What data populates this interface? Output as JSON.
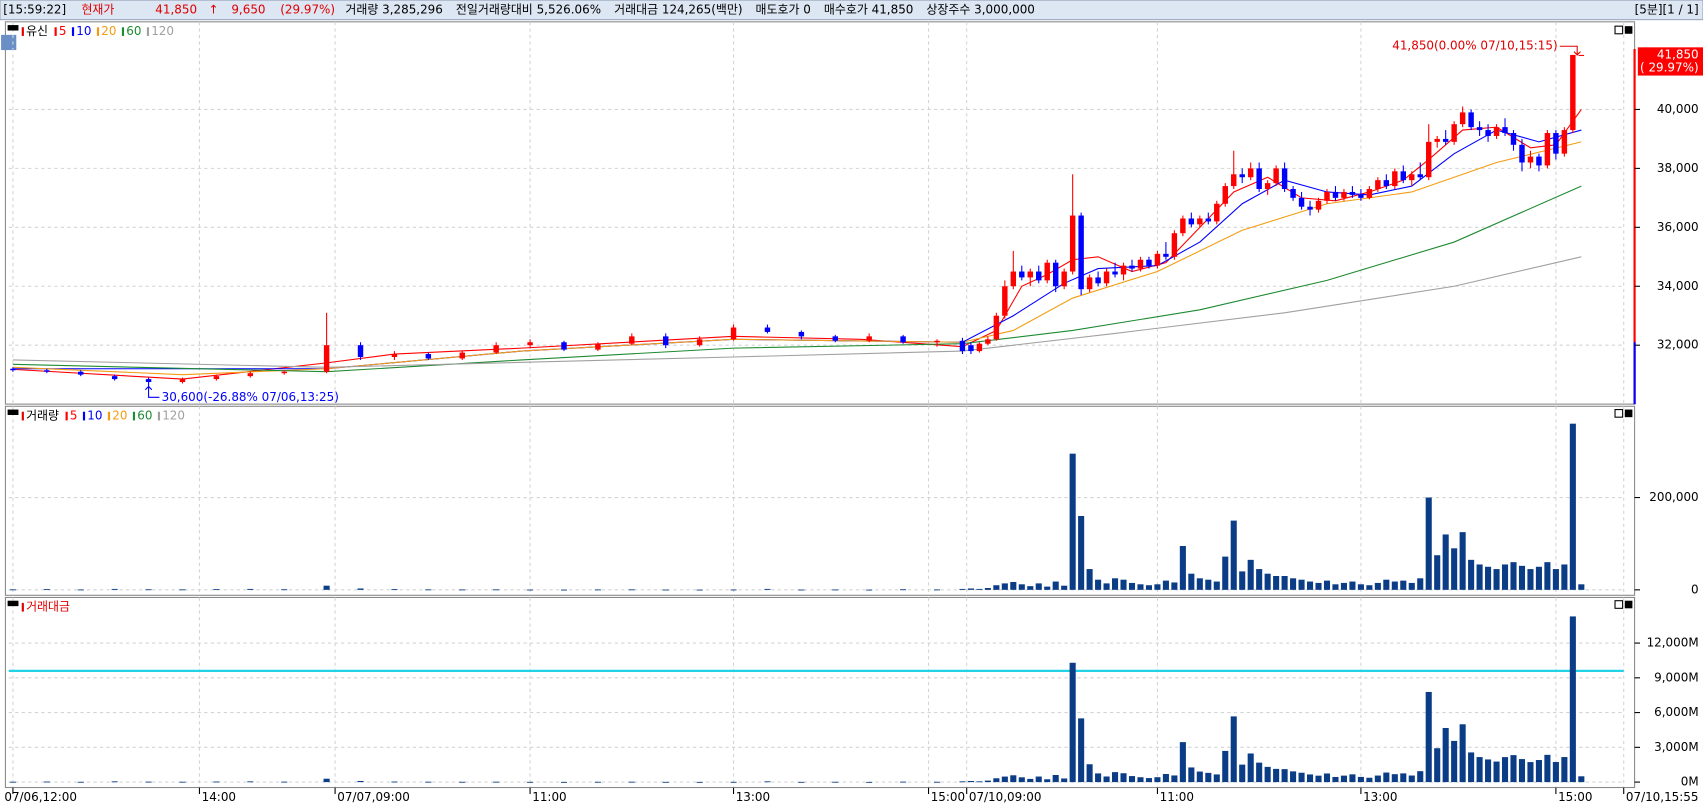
{
  "header": {
    "time": "[15:59:22]",
    "label": "현재가",
    "price": "41,850",
    "arrow": "↑",
    "change": "9,650",
    "change_pct": "(29.97%)",
    "items": [
      "거래량 3,285,296",
      "전일거래량대비 5,526.06%",
      "거래대금 124,265(백만)",
      "매도호가 0",
      "매수호가 41,850",
      "상장주수 3,000,000"
    ],
    "right": "[5분][1 / 1]"
  },
  "x_axis": {
    "xlim": [
      -0.5,
      190
    ],
    "xticks": [
      {
        "value": 0,
        "label": "07/06,12:00"
      },
      {
        "value": 22,
        "label": "14:00"
      },
      {
        "value": 38,
        "label": "07/07,09:00"
      },
      {
        "value": 61,
        "label": "11:00"
      },
      {
        "value": 85,
        "label": "13:00"
      },
      {
        "value": 108,
        "label": "15:00"
      },
      {
        "value": 112.5,
        "label": "07/10,09:00"
      },
      {
        "value": 135,
        "label": "11:00"
      },
      {
        "value": 159,
        "label": "13:00"
      },
      {
        "value": 182,
        "label": "15:00"
      },
      {
        "value": 190,
        "label": "07/10,15:55"
      }
    ]
  },
  "chart_data": [
    {
      "type": "candlestick",
      "name": "유신",
      "up_color": "#ff0000",
      "down_color": "#0000ff",
      "ylim": [
        30000,
        42900
      ],
      "yticks": [
        {
          "value": 32000,
          "label": "32,000"
        },
        {
          "value": 34000,
          "label": "34,000"
        },
        {
          "value": 36000,
          "label": "36,000"
        },
        {
          "value": 38000,
          "label": "38,000"
        },
        {
          "value": 40000,
          "label": "40,000"
        }
      ],
      "grid": true,
      "x": [
        0,
        4,
        8,
        12,
        16,
        20,
        24,
        28,
        32,
        37,
        41,
        45,
        49,
        53,
        57,
        61,
        65,
        69,
        73,
        77,
        81,
        85,
        89,
        93,
        97,
        101,
        105,
        109,
        112,
        113,
        114,
        115,
        116,
        117,
        118,
        119,
        120,
        121,
        122,
        123,
        124,
        125,
        126,
        127,
        128,
        129,
        130,
        131,
        132,
        133,
        134,
        135,
        136,
        137,
        138,
        139,
        140,
        141,
        142,
        143,
        144,
        145,
        146,
        147,
        148,
        149,
        150,
        151,
        152,
        153,
        154,
        155,
        156,
        157,
        158,
        159,
        160,
        161,
        162,
        163,
        164,
        165,
        166,
        167,
        168,
        169,
        170,
        171,
        172,
        173,
        174,
        175,
        176,
        177,
        178,
        179,
        180,
        181,
        182,
        183,
        184,
        185
      ],
      "open": [
        31200,
        31150,
        31100,
        30950,
        30850,
        30750,
        30850,
        30950,
        31050,
        31100,
        32000,
        31600,
        31700,
        31550,
        31750,
        32000,
        32100,
        31850,
        32050,
        32300,
        32000,
        32200,
        32600,
        32450,
        32300,
        32150,
        32300,
        32100,
        32150,
        32000,
        31800,
        32050,
        32200,
        33000,
        34000,
        34500,
        34300,
        34500,
        34200,
        34800,
        34000,
        34500,
        36400,
        33900,
        34300,
        34100,
        34500,
        34400,
        34700,
        34600,
        34900,
        34700,
        35100,
        35000,
        35800,
        36300,
        36100,
        36300,
        36200,
        36800,
        37400,
        37800,
        37700,
        38000,
        37300,
        37500,
        38000,
        37300,
        37000,
        36700,
        36600,
        36900,
        37200,
        37000,
        37200,
        37100,
        37000,
        37300,
        37600,
        37400,
        37900,
        37600,
        37800,
        37700,
        38900,
        39000,
        38900,
        39500,
        39900,
        39400,
        39300,
        39100,
        39400,
        39200,
        38800,
        38200,
        38400,
        38100,
        39200,
        38500,
        39300,
        41850
      ],
      "high": [
        31250,
        31200,
        31150,
        31000,
        30900,
        30900,
        31000,
        31100,
        31150,
        33100,
        32100,
        31800,
        31750,
        31800,
        32100,
        32200,
        32150,
        32100,
        32400,
        32400,
        32300,
        32700,
        32700,
        32500,
        32350,
        32400,
        32350,
        32200,
        32250,
        32100,
        32100,
        32300,
        33100,
        34200,
        35200,
        34700,
        34600,
        34700,
        34900,
        34900,
        34600,
        37800,
        36500,
        34400,
        34500,
        34600,
        34800,
        34800,
        34900,
        35000,
        35000,
        35200,
        35500,
        35900,
        36400,
        36500,
        36400,
        36500,
        36900,
        37500,
        38600,
        38000,
        38200,
        38200,
        37600,
        38100,
        38200,
        37400,
        37200,
        36900,
        37000,
        37300,
        37400,
        37300,
        37400,
        37300,
        37400,
        37700,
        37800,
        38000,
        38100,
        37900,
        38200,
        39500,
        39100,
        39300,
        39600,
        40100,
        40000,
        39600,
        39500,
        39500,
        39700,
        39300,
        39000,
        38600,
        38500,
        39300,
        39300,
        39400,
        41850,
        41850
      ],
      "low": [
        31100,
        31050,
        30950,
        30800,
        30600,
        30700,
        30800,
        30900,
        31000,
        31050,
        31500,
        31500,
        31500,
        31500,
        31700,
        31900,
        31800,
        31800,
        32000,
        31900,
        31950,
        32150,
        32400,
        32200,
        32100,
        32100,
        32050,
        31950,
        31700,
        31700,
        31750,
        32000,
        32150,
        32900,
        33900,
        34200,
        34000,
        34100,
        34100,
        33800,
        33900,
        34400,
        33700,
        33800,
        34000,
        34000,
        34300,
        34200,
        34500,
        34500,
        34600,
        34600,
        34900,
        34900,
        35700,
        36000,
        36000,
        36100,
        36100,
        36700,
        37300,
        37500,
        37600,
        37200,
        37100,
        37400,
        37200,
        36900,
        36600,
        36400,
        36500,
        36800,
        36900,
        36900,
        37000,
        36900,
        36950,
        37200,
        37300,
        37300,
        37500,
        37400,
        37600,
        37600,
        38700,
        38800,
        38800,
        39400,
        39300,
        39100,
        38900,
        39000,
        39100,
        38600,
        37900,
        38000,
        37900,
        38000,
        38300,
        38400,
        39200,
        41850
      ],
      "close": [
        31150,
        31100,
        31000,
        30850,
        30750,
        30850,
        30950,
        31050,
        31100,
        32000,
        31600,
        31700,
        31550,
        31750,
        32000,
        32100,
        31850,
        32050,
        32300,
        32000,
        32200,
        32600,
        32450,
        32300,
        32150,
        32300,
        32100,
        32150,
        31800,
        31800,
        32050,
        32200,
        33000,
        34000,
        34500,
        34300,
        34500,
        34200,
        34800,
        34000,
        34500,
        36400,
        33900,
        34300,
        34100,
        34500,
        34400,
        34700,
        34600,
        34900,
        34700,
        35100,
        35000,
        35800,
        36300,
        36100,
        36300,
        36200,
        36800,
        37400,
        37800,
        37700,
        38000,
        37300,
        37500,
        38000,
        37300,
        37000,
        36700,
        36600,
        36900,
        37200,
        37000,
        37200,
        37100,
        37000,
        37300,
        37600,
        37400,
        37900,
        37600,
        37800,
        37700,
        38900,
        39000,
        38900,
        39500,
        39900,
        39400,
        39300,
        39100,
        39400,
        39200,
        38800,
        38200,
        38400,
        38100,
        39200,
        38500,
        39300,
        41850,
        41850
      ],
      "series": [
        {
          "name": "5",
          "color": "#ff0000",
          "x": [
            0,
            20,
            37,
            45,
            60,
            85,
            100,
            112,
            116,
            119,
            122,
            125,
            128,
            132,
            136,
            140,
            144,
            148,
            152,
            156,
            160,
            164,
            167,
            171,
            175,
            179,
            182,
            185
          ],
          "values": [
            31180,
            30850,
            31400,
            31700,
            31900,
            32300,
            32200,
            31950,
            32500,
            34000,
            34400,
            34900,
            35000,
            34500,
            34800,
            36000,
            37200,
            37700,
            37000,
            36900,
            37200,
            37600,
            38300,
            39300,
            39400,
            38700,
            38800,
            40000
          ]
        },
        {
          "name": "10",
          "color": "#0000ff",
          "x": [
            0,
            37,
            60,
            85,
            112,
            118,
            124,
            128,
            135,
            140,
            145,
            150,
            155,
            160,
            165,
            170,
            175,
            180,
            185
          ],
          "values": [
            31200,
            31200,
            31800,
            32200,
            32100,
            33000,
            34100,
            34600,
            34700,
            35500,
            36800,
            37600,
            37200,
            37100,
            37400,
            38500,
            39300,
            38900,
            39300
          ]
        },
        {
          "name": "20",
          "color": "#f39c12",
          "x": [
            0,
            20,
            37,
            60,
            85,
            112,
            118,
            125,
            135,
            145,
            155,
            165,
            175,
            185
          ],
          "values": [
            31250,
            31000,
            31200,
            31800,
            32200,
            32100,
            32500,
            33600,
            34500,
            35900,
            36800,
            37200,
            38200,
            38900
          ]
        },
        {
          "name": "60",
          "color": "#1e8a32",
          "x": [
            0,
            37,
            60,
            85,
            112,
            125,
            140,
            155,
            170,
            185
          ],
          "values": [
            31350,
            31100,
            31500,
            31900,
            32050,
            32500,
            33200,
            34200,
            35500,
            37400
          ]
        },
        {
          "name": "120",
          "color": "#a0a0a0",
          "x": [
            0,
            37,
            85,
            112,
            130,
            150,
            170,
            185
          ],
          "values": [
            31500,
            31250,
            31600,
            31800,
            32400,
            33100,
            34000,
            35000
          ]
        }
      ],
      "annotations": [
        {
          "text": "41,850(0.00% 07/10,15:15)",
          "x": 184,
          "y": 41850
        },
        {
          "text": "30,600(-26.88% 07/06,13:25)",
          "x": 16,
          "y": 30600
        }
      ],
      "current_price_label": "41,850",
      "current_change_label": "( 29.97%)"
    },
    {
      "type": "bar",
      "name": "거래량",
      "ma_legend": [
        "5",
        "10",
        "20",
        "60",
        "120"
      ],
      "color": "#0b3c86",
      "ylim": [
        0,
        400000
      ],
      "yticks": [
        0,
        {
          "value": 200000,
          "label": "200,000"
        }
      ],
      "grid": true,
      "values": [
        1000,
        1500,
        800,
        2000,
        1200,
        1000,
        1500,
        2000,
        1200,
        9000,
        3000,
        1500,
        1000,
        800,
        1000,
        600,
        500,
        800,
        1000,
        600,
        500,
        700,
        2000,
        600,
        800,
        500,
        1200,
        800,
        2000,
        3000,
        2000,
        4000,
        10000,
        14000,
        17000,
        12000,
        8000,
        14000,
        7000,
        18000,
        9000,
        295000,
        160000,
        45000,
        22000,
        14000,
        25000,
        22000,
        15000,
        12000,
        10000,
        12000,
        20000,
        16000,
        95000,
        35000,
        25000,
        22000,
        18000,
        72000,
        150000,
        40000,
        65000,
        45000,
        35000,
        30000,
        30000,
        25000,
        22000,
        18000,
        15000,
        20000,
        12000,
        15000,
        18000,
        12000,
        10000,
        15000,
        22000,
        18000,
        20000,
        15000,
        25000,
        200000,
        75000,
        120000,
        90000,
        125000,
        65000,
        55000,
        50000,
        45000,
        55000,
        60000,
        52000,
        45000,
        50000,
        60000,
        45000,
        55000,
        360000,
        12000
      ]
    },
    {
      "type": "bar",
      "name": "거래대금",
      "color": "#0b3c86",
      "ylim": [
        0,
        15750
      ],
      "reference_line": 9600,
      "reference_color": "#22d3e6",
      "yticks": [
        {
          "value": 0,
          "label": "0M"
        },
        {
          "value": 3000,
          "label": "3,000M"
        },
        {
          "value": 6000,
          "label": "6,000M"
        },
        {
          "value": 9000,
          "label": "9,000M"
        },
        {
          "value": 12000,
          "label": "12,000M"
        }
      ],
      "grid": true,
      "values": [
        31,
        47,
        25,
        62,
        37,
        31,
        47,
        62,
        37,
        290,
        95,
        47,
        32,
        25,
        32,
        19,
        16,
        26,
        32,
        19,
        16,
        22,
        65,
        19,
        26,
        16,
        39,
        26,
        64,
        95,
        64,
        129,
        330,
        476,
        587,
        412,
        276,
        479,
        244,
        612,
        311,
        10300,
        5500,
        1540,
        750,
        483,
        860,
        764,
        519,
        419,
        347,
        421,
        700,
        573,
        3450,
        1264,
        908,
        796,
        662,
        2690,
        5670,
        1508,
        2470,
        1679,
        1313,
        1140,
        1119,
        925,
        807,
        659,
        554,
        744,
        444,
        558,
        668,
        444,
        373,
        564,
        823,
        682,
        752,
        567,
        943,
        7780,
        2925,
        4670,
        3555,
        4990,
        2560,
        2160,
        1955,
        1773,
        2156,
        2328,
        1986,
        1728,
        1905,
        2352,
        1733,
        2161,
        14300,
        500
      ]
    }
  ]
}
